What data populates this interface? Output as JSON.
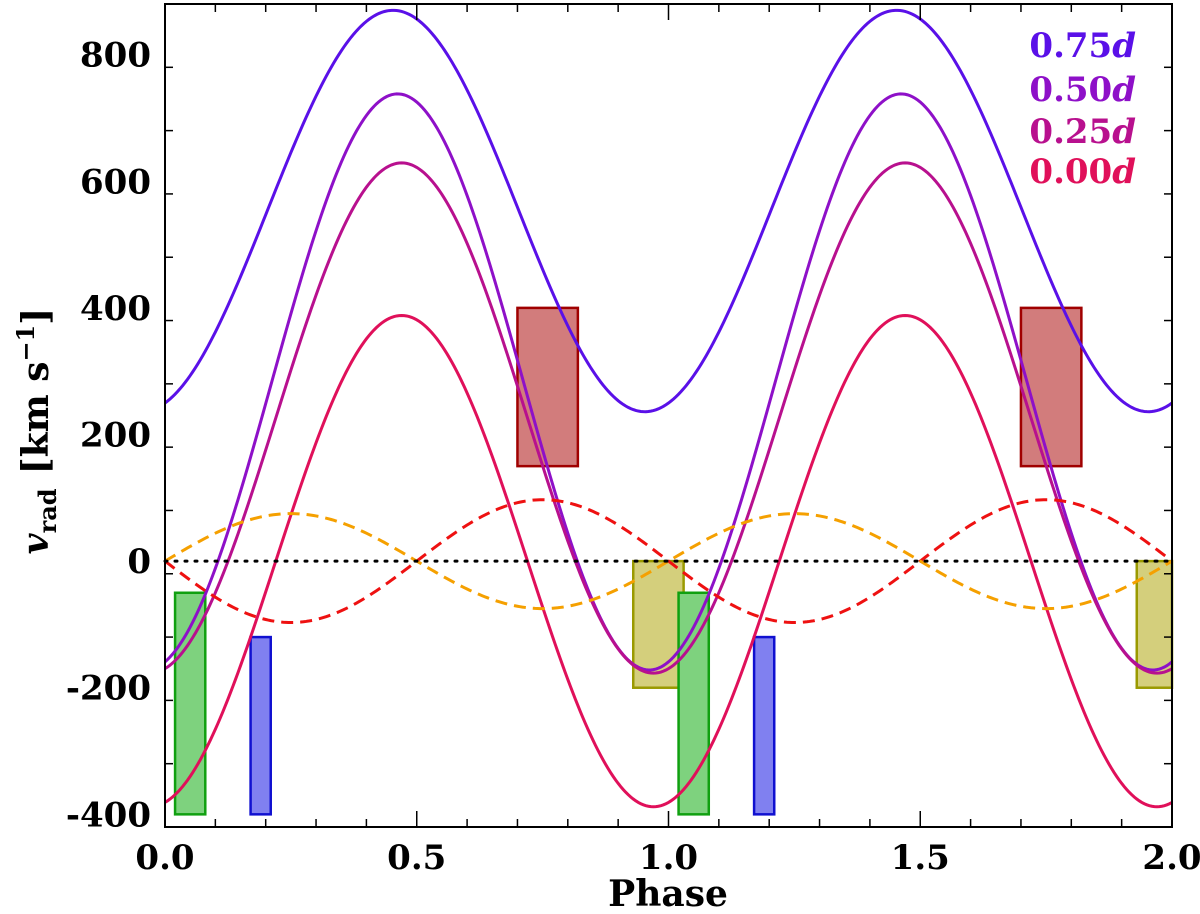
{
  "chart_data": {
    "type": "line",
    "title": "",
    "xlabel": "Phase",
    "ylabel": {
      "var": "v",
      "sub": "rad",
      "unit_pre": "[km s",
      "unit_sup": "−1",
      "unit_post": "]"
    },
    "xlim": [
      0.0,
      2.0
    ],
    "ylim": [
      -420,
      880
    ],
    "x_ticks": [
      0.0,
      0.5,
      1.0,
      1.5,
      2.0
    ],
    "x_tick_labels": [
      "0.0",
      "0.5",
      "1.0",
      "1.5",
      "2.0"
    ],
    "y_ticks": [
      -400,
      -200,
      0,
      200,
      400,
      600,
      800
    ],
    "y_tick_labels": [
      "-400",
      "-200",
      "0",
      "200",
      "400",
      "600",
      "800"
    ],
    "x_minor_step": 0.1,
    "y_minor_step": 100,
    "series": [
      {
        "name": "0.75d",
        "color": "#5a10e8",
        "offset": 553,
        "amplitude": 317,
        "phase_of_max": 0.453,
        "style": "solid"
      },
      {
        "name": "0.50d",
        "color": "#8e10c8",
        "offset": 283,
        "amplitude": 455,
        "phase_of_max": 0.462,
        "style": "solid"
      },
      {
        "name": "0.25d",
        "color": "#b8108e",
        "offset": 226,
        "amplitude": 403,
        "phase_of_max": 0.47,
        "style": "solid"
      },
      {
        "name": "0.00d",
        "color": "#e0105a",
        "offset": 0,
        "amplitude": 388,
        "phase_of_max": 0.47,
        "style": "solid"
      },
      {
        "name": "dashed-red",
        "color": "#ee1111",
        "offset": 0,
        "amplitude": 97,
        "phase_of_max": 0.75,
        "style": "dashed"
      },
      {
        "name": "dashed-orange",
        "color": "#f5a000",
        "offset": 0,
        "amplitude": 75,
        "phase_of_max": 0.25,
        "style": "dashed"
      }
    ],
    "zero_line": {
      "y": 0,
      "style": "dotted",
      "color": "#000000"
    },
    "boxes": [
      {
        "name": "red-box",
        "x0": 0.7,
        "x1": 0.82,
        "y0": 150,
        "y1": 400,
        "fill": "#d27c7c",
        "stroke": "#a00000"
      },
      {
        "name": "red-box",
        "x0": 1.7,
        "x1": 1.82,
        "y0": 150,
        "y1": 400,
        "fill": "#d27c7c",
        "stroke": "#a00000"
      },
      {
        "name": "yellow-box",
        "x0": 0.93,
        "x1": 1.03,
        "y0": -200,
        "y1": 0,
        "fill": "#d4cf7c",
        "stroke": "#9a9a00"
      },
      {
        "name": "yellow-box",
        "x0": 1.93,
        "x1": 2.0,
        "y0": -200,
        "y1": 0,
        "fill": "#d4cf7c",
        "stroke": "#9a9a00"
      },
      {
        "name": "green-box",
        "x0": 0.02,
        "x1": 0.08,
        "y0": -400,
        "y1": -50,
        "fill": "#7ed27e",
        "stroke": "#10a010"
      },
      {
        "name": "green-box",
        "x0": 1.02,
        "x1": 1.08,
        "y0": -400,
        "y1": -50,
        "fill": "#7ed27e",
        "stroke": "#10a010"
      },
      {
        "name": "blue-box",
        "x0": 0.17,
        "x1": 0.21,
        "y0": -400,
        "y1": -120,
        "fill": "#8080f0",
        "stroke": "#1010d0"
      },
      {
        "name": "blue-box",
        "x0": 1.17,
        "x1": 1.21,
        "y0": -400,
        "y1": -120,
        "fill": "#8080f0",
        "stroke": "#1010d0"
      }
    ],
    "legend": {
      "position": "top-right",
      "entries": [
        {
          "value": "0.75",
          "symbol": "d",
          "color": "#5a10e8"
        },
        {
          "value": "0.50",
          "symbol": "d",
          "color": "#8e10c8"
        },
        {
          "value": "0.25",
          "symbol": "d",
          "color": "#b8108e"
        },
        {
          "value": "0.00",
          "symbol": "d",
          "color": "#e0105a"
        }
      ]
    }
  }
}
